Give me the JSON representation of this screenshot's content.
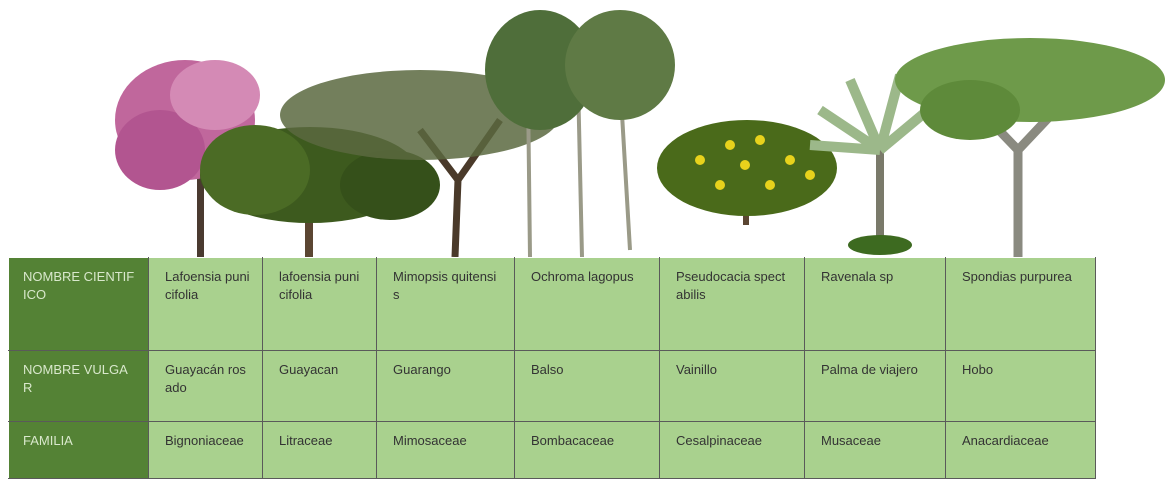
{
  "table": {
    "rows": [
      [
        "NOMBRE CIENTIFICO",
        "Lafoensia punicifolia",
        "lafoensia punicifolia",
        "Mimopsis quitensis",
        "Ochroma  lagopus",
        "Pseudocacia spectabilis",
        "Ravenala sp",
        "Spondias purpurea"
      ],
      [
        "NOMBRE VULGAR",
        "Guayacán rosado",
        "Guayacan",
        "Guarango",
        "Balso",
        "Vainillo",
        "Palma de viajero",
        "Hobo"
      ],
      [
        "FAMILIA",
        "Bignoniaceae",
        "Litraceae",
        "Mimosaceae",
        "Bombacaceae",
        "Cesalpinaceae",
        "Musaceae",
        "Anacardiaceae"
      ]
    ]
  }
}
